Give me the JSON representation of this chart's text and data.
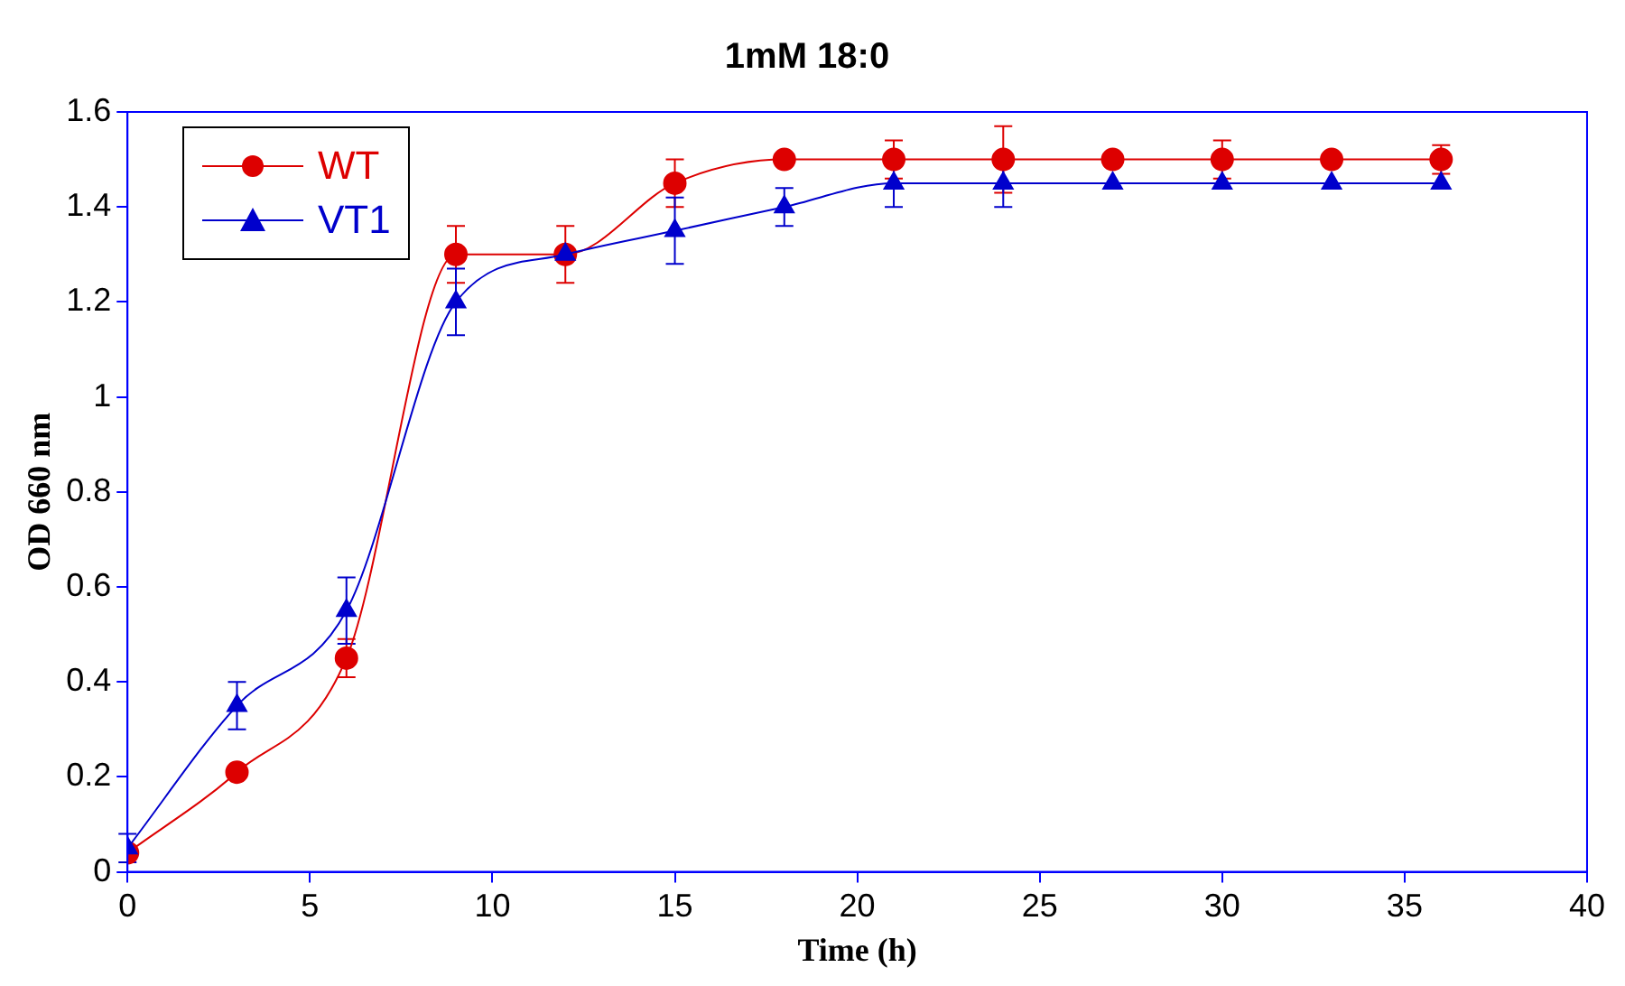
{
  "chart_data": {
    "type": "line",
    "title": "1mM 18:0",
    "xlabel": "Time (h)",
    "ylabel": "OD 660 nm",
    "x": [
      0,
      3,
      6,
      9,
      12,
      15,
      18,
      21,
      24,
      27,
      30,
      33,
      36
    ],
    "series": [
      {
        "name": "WT",
        "color": "#dd0000",
        "marker": "circle",
        "values": [
          0.04,
          0.21,
          0.45,
          1.3,
          1.3,
          1.45,
          1.5,
          1.5,
          1.5,
          1.5,
          1.5,
          1.5,
          1.5
        ],
        "errors": [
          null,
          null,
          0.04,
          0.06,
          0.06,
          0.05,
          null,
          0.04,
          0.07,
          null,
          0.04,
          null,
          0.03
        ]
      },
      {
        "name": "VT1",
        "color": "#0000cc",
        "marker": "triangle",
        "values": [
          0.05,
          0.35,
          0.55,
          1.2,
          1.3,
          1.35,
          1.4,
          1.45,
          1.45,
          1.45,
          1.45,
          1.45,
          1.45
        ],
        "errors": [
          0.03,
          0.05,
          0.07,
          0.07,
          null,
          0.07,
          0.04,
          0.05,
          0.05,
          null,
          null,
          null,
          null
        ]
      }
    ],
    "xlim": [
      0,
      40
    ],
    "xticks": [
      0,
      5,
      10,
      15,
      20,
      25,
      30,
      35,
      40
    ],
    "ylim": [
      0,
      1.6
    ],
    "yticks": [
      0,
      0.2,
      0.4,
      0.6,
      0.8,
      1,
      1.2,
      1.4,
      1.6
    ],
    "grid": false,
    "legend": "top left",
    "line_style": "solid"
  }
}
